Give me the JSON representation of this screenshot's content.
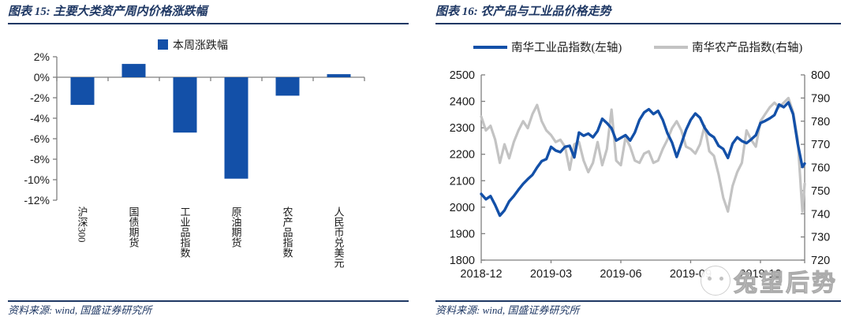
{
  "colors": {
    "navy": "#1f3864",
    "blue": "#1350a8",
    "gray_line": "#c3c3c3",
    "axis": "#7f7f7f",
    "text": "#1a1a1a"
  },
  "left_panel": {
    "title": "图表 15: 主要大类资产周内价格涨跌幅",
    "source": "资料来源: wind, 国盛证券研究所"
  },
  "right_panel": {
    "title": "图表 16: 农产品与工业品价格走势",
    "source": "资料来源: wind, 国盛证券研究所"
  },
  "watermark": {
    "logo": "cartoon-animal-face",
    "text": "兔望后势"
  },
  "chart_data": [
    {
      "type": "bar",
      "panel": "left",
      "title": "主要大类资产周内价格涨跌幅",
      "legend": [
        {
          "label": "本周涨跌幅",
          "color": "#1350a8"
        }
      ],
      "legend_position": "top",
      "categories": [
        "沪深300",
        "国债期货",
        "工业品指数",
        "原油期货",
        "农产品指数",
        "人民币兑美元"
      ],
      "values": [
        -2.7,
        1.3,
        -5.4,
        -9.9,
        -1.8,
        0.3
      ],
      "value_unit": "%",
      "ylim": [
        -12,
        2
      ],
      "yticks": [
        2,
        0,
        -2,
        -4,
        -6,
        -8,
        -10,
        -12
      ],
      "ytick_labels": [
        "2%",
        "0%",
        "-2%",
        "-4%",
        "-6%",
        "-8%",
        "-10%",
        "-12%"
      ],
      "grid": false,
      "bar_color": "#1350a8"
    },
    {
      "type": "line",
      "panel": "right",
      "title": "农产品与工业品价格走势",
      "legend_position": "top",
      "x_axis": {
        "unit": "month",
        "tick_labels": [
          "2018-12",
          "2019-03",
          "2019-06",
          "2019-09",
          "2019-12"
        ],
        "tick_months": [
          0,
          3,
          6,
          9,
          12
        ],
        "xlim_months": [
          0,
          13.9
        ]
      },
      "y_axis_left": {
        "min": 1800,
        "max": 2500,
        "tick_step": 100,
        "tick_labels": [
          "2500",
          "2400",
          "2300",
          "2200",
          "2100",
          "2000",
          "1900",
          "1800"
        ]
      },
      "y_axis_right": {
        "min": 720,
        "max": 800,
        "tick_step": 10,
        "tick_labels": [
          "800",
          "790",
          "780",
          "770",
          "760",
          "750",
          "740",
          "730",
          "720"
        ]
      },
      "grid": false,
      "x_months": [
        0,
        0.2,
        0.4,
        0.6,
        0.8,
        1,
        1.2,
        1.4,
        1.6,
        1.8,
        2,
        2.2,
        2.4,
        2.6,
        2.8,
        3,
        3.2,
        3.4,
        3.6,
        3.8,
        4,
        4.2,
        4.4,
        4.6,
        4.8,
        5,
        5.2,
        5.4,
        5.6,
        5.8,
        6,
        6.2,
        6.4,
        6.6,
        6.8,
        7,
        7.2,
        7.4,
        7.6,
        7.8,
        8,
        8.2,
        8.4,
        8.6,
        8.8,
        9,
        9.2,
        9.4,
        9.6,
        9.8,
        10,
        10.2,
        10.4,
        10.6,
        10.8,
        11,
        11.2,
        11.4,
        11.6,
        11.8,
        12,
        12.2,
        12.4,
        12.6,
        12.8,
        13,
        13.2,
        13.4,
        13.6,
        13.8,
        13.9
      ],
      "series": [
        {
          "name": "南华工业品指数(左轴)",
          "axis": "left",
          "color": "#1350a8",
          "values": [
            2050,
            2030,
            2042,
            2008,
            1968,
            1988,
            2022,
            2042,
            2066,
            2088,
            2106,
            2122,
            2150,
            2174,
            2182,
            2228,
            2214,
            2208,
            2228,
            2232,
            2188,
            2282,
            2270,
            2278,
            2264,
            2288,
            2334,
            2318,
            2298,
            2252,
            2262,
            2272,
            2252,
            2282,
            2330,
            2358,
            2370,
            2352,
            2364,
            2330,
            2280,
            2244,
            2190,
            2240,
            2292,
            2330,
            2354,
            2338,
            2300,
            2276,
            2264,
            2232,
            2220,
            2186,
            2240,
            2264,
            2250,
            2242,
            2256,
            2272,
            2318,
            2326,
            2336,
            2348,
            2388,
            2378,
            2396,
            2352,
            2240,
            2152,
            2165
          ]
        },
        {
          "name": "南华农产品指数(右轴)",
          "axis": "right",
          "color": "#c3c3c3",
          "values": [
            782,
            776,
            778,
            772,
            762,
            770,
            764,
            771,
            776,
            780,
            777,
            783,
            787,
            780,
            776,
            774,
            771,
            772,
            769,
            759,
            770,
            771,
            763,
            758,
            762,
            771,
            761,
            768,
            785,
            763,
            761,
            773,
            769,
            763,
            762,
            766,
            767,
            762,
            763,
            768,
            772,
            777,
            780,
            776,
            769,
            768,
            766,
            770,
            778,
            767,
            765,
            757,
            747,
            741,
            752,
            758,
            762,
            776,
            772,
            769,
            780,
            783,
            786,
            788,
            786,
            788,
            790,
            784,
            772,
            741,
            753
          ]
        }
      ]
    }
  ]
}
